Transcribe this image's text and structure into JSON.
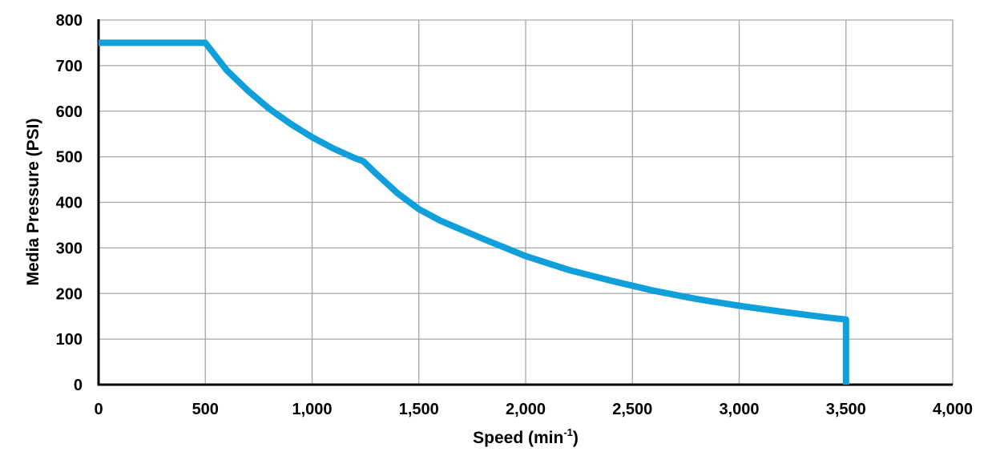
{
  "chart_data": {
    "type": "line",
    "title": "",
    "xlabel": "Speed (min",
    "xlabel_superscript": "-1",
    "xlabel_suffix": ")",
    "ylabel": "Media Pressure (PSI)",
    "xlim": [
      0,
      4000
    ],
    "ylim": [
      0,
      800
    ],
    "x_ticks": [
      0,
      500,
      1000,
      1500,
      2000,
      2500,
      3000,
      3500,
      4000
    ],
    "x_tick_labels": [
      "0",
      "500",
      "1,000",
      "1,500",
      "2,000",
      "2,500",
      "3,000",
      "3,500",
      "4,000"
    ],
    "y_ticks": [
      0,
      100,
      200,
      300,
      400,
      500,
      600,
      700,
      800
    ],
    "y_tick_labels": [
      "0",
      "100",
      "200",
      "300",
      "400",
      "500",
      "600",
      "700",
      "800"
    ],
    "grid": true,
    "legend": "none",
    "series": [
      {
        "color": "#0f9fdb",
        "x": [
          0,
          500,
          600,
          700,
          800,
          900,
          1000,
          1100,
          1200,
          1240,
          1300,
          1400,
          1500,
          1600,
          1800,
          2000,
          2200,
          2400,
          2600,
          2800,
          3000,
          3200,
          3400,
          3500,
          3500
        ],
        "y": [
          750,
          750,
          690,
          645,
          605,
          572,
          543,
          518,
          497,
          490,
          463,
          420,
          385,
          360,
          320,
          282,
          252,
          228,
          206,
          188,
          173,
          160,
          148,
          143,
          0
        ]
      }
    ]
  }
}
